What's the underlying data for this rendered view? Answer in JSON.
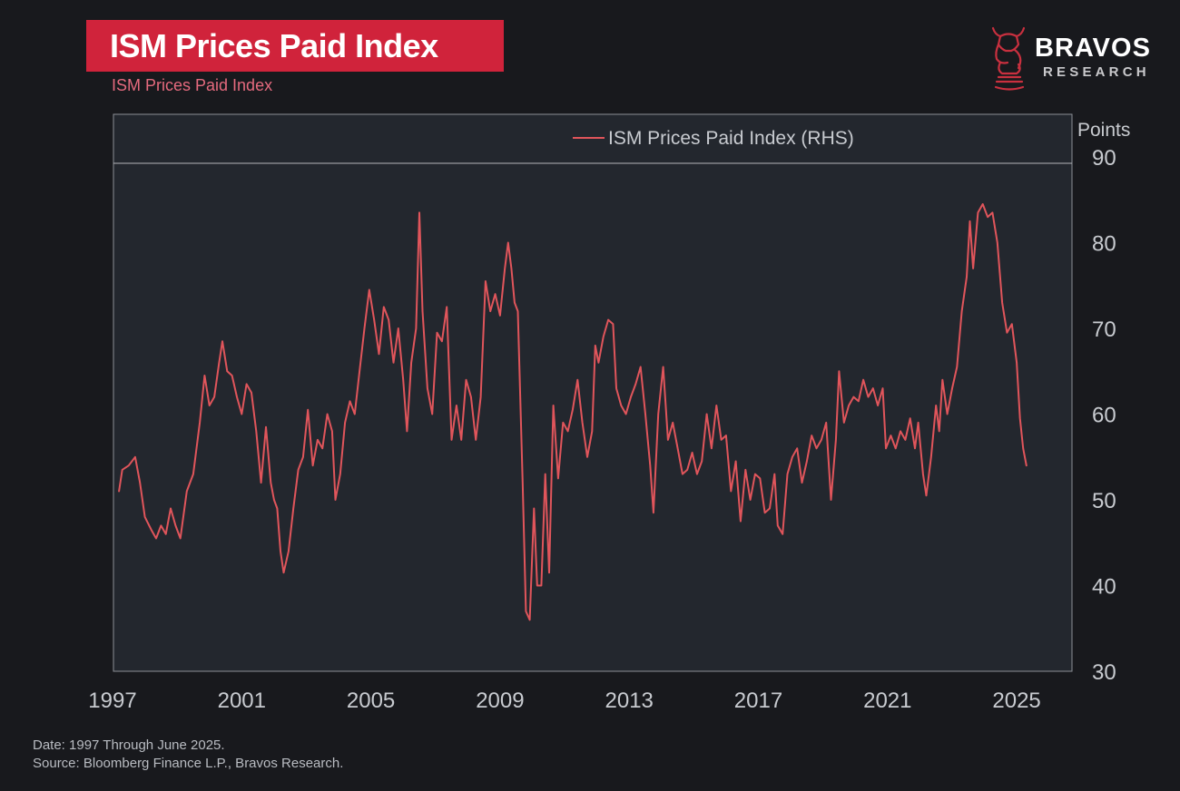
{
  "header": {
    "title": "ISM Prices Paid Index",
    "subtitle": "ISM Prices Paid Index"
  },
  "brand": {
    "name": "BRAVOS",
    "sub": "RESEARCH",
    "logo_icon": "bull-knight-icon"
  },
  "footer": {
    "date_note": "Date: 1997 Through June 2025.",
    "source_note": "Source: Bloomberg Finance L.P., Bravos Research."
  },
  "colors": {
    "background": "#18191d",
    "plot_background": "#23272e",
    "accent": "#d0233b",
    "series": "#e0555b",
    "axis_text": "#c8cbd0"
  },
  "chart_data": {
    "type": "line",
    "title": "ISM Prices Paid Index",
    "ylabel": "Points",
    "ylim": [
      30,
      90
    ],
    "xlim": [
      1997,
      2025.7
    ],
    "y_axis_side": "right",
    "grid": false,
    "legend_position": "top-center",
    "x_ticks": [
      "1997",
      "2001",
      "2005",
      "2009",
      "2013",
      "2017",
      "2021",
      "2025"
    ],
    "y_ticks": [
      "30",
      "40",
      "50",
      "60",
      "70",
      "80",
      "90"
    ],
    "series": [
      {
        "name": "ISM Prices Paid Index (RHS)",
        "color": "#e0555b",
        "points": [
          [
            1997.2,
            51
          ],
          [
            1997.3,
            53.5
          ],
          [
            1997.5,
            54
          ],
          [
            1997.7,
            55
          ],
          [
            1997.85,
            52
          ],
          [
            1998.0,
            48
          ],
          [
            1998.2,
            46.5
          ],
          [
            1998.35,
            45.5
          ],
          [
            1998.5,
            47
          ],
          [
            1998.65,
            46
          ],
          [
            1998.8,
            49
          ],
          [
            1998.95,
            47
          ],
          [
            1999.1,
            45.5
          ],
          [
            1999.3,
            51
          ],
          [
            1999.5,
            53
          ],
          [
            1999.7,
            59
          ],
          [
            1999.85,
            64.5
          ],
          [
            2000.0,
            61
          ],
          [
            2000.15,
            62
          ],
          [
            2000.3,
            66
          ],
          [
            2000.4,
            68.5
          ],
          [
            2000.55,
            65
          ],
          [
            2000.7,
            64.5
          ],
          [
            2000.85,
            62
          ],
          [
            2001.0,
            60
          ],
          [
            2001.15,
            63.5
          ],
          [
            2001.3,
            62.5
          ],
          [
            2001.45,
            58
          ],
          [
            2001.6,
            52
          ],
          [
            2001.75,
            58.5
          ],
          [
            2001.9,
            52
          ],
          [
            2002.0,
            50
          ],
          [
            2002.1,
            49
          ],
          [
            2002.2,
            44
          ],
          [
            2002.3,
            41.5
          ],
          [
            2002.45,
            44
          ],
          [
            2002.6,
            49
          ],
          [
            2002.75,
            53.5
          ],
          [
            2002.9,
            55
          ],
          [
            2003.05,
            60.5
          ],
          [
            2003.2,
            54
          ],
          [
            2003.35,
            57
          ],
          [
            2003.5,
            56
          ],
          [
            2003.65,
            60
          ],
          [
            2003.8,
            58
          ],
          [
            2003.9,
            50
          ],
          [
            2004.05,
            53
          ],
          [
            2004.2,
            59
          ],
          [
            2004.35,
            61.5
          ],
          [
            2004.5,
            60
          ],
          [
            2004.65,
            65
          ],
          [
            2004.8,
            70
          ],
          [
            2004.95,
            74.5
          ],
          [
            2005.1,
            71
          ],
          [
            2005.25,
            67
          ],
          [
            2005.4,
            72.5
          ],
          [
            2005.55,
            71
          ],
          [
            2005.7,
            66
          ],
          [
            2005.85,
            70
          ],
          [
            2006.0,
            64
          ],
          [
            2006.12,
            58
          ],
          [
            2006.25,
            66
          ],
          [
            2006.4,
            70
          ],
          [
            2006.5,
            83.5
          ],
          [
            2006.6,
            72
          ],
          [
            2006.75,
            63
          ],
          [
            2006.9,
            60
          ],
          [
            2007.05,
            69.5
          ],
          [
            2007.2,
            68.5
          ],
          [
            2007.35,
            72.5
          ],
          [
            2007.5,
            57
          ],
          [
            2007.65,
            61
          ],
          [
            2007.8,
            57
          ],
          [
            2007.95,
            64
          ],
          [
            2008.1,
            62
          ],
          [
            2008.25,
            57
          ],
          [
            2008.4,
            62
          ],
          [
            2008.55,
            75.5
          ],
          [
            2008.7,
            72
          ],
          [
            2008.85,
            74
          ],
          [
            2009.0,
            71.5
          ],
          [
            2009.15,
            77
          ],
          [
            2009.25,
            80
          ],
          [
            2009.35,
            77
          ],
          [
            2009.45,
            73
          ],
          [
            2009.55,
            72
          ],
          [
            2009.7,
            52
          ],
          [
            2009.8,
            37
          ],
          [
            2009.92,
            36
          ],
          [
            2010.05,
            49
          ],
          [
            2010.15,
            40
          ],
          [
            2010.28,
            40
          ],
          [
            2010.4,
            53
          ],
          [
            2010.52,
            41.5
          ],
          [
            2010.65,
            61
          ],
          [
            2010.8,
            52.5
          ],
          [
            2010.95,
            59
          ],
          [
            2011.1,
            58
          ],
          [
            2011.25,
            60.5
          ],
          [
            2011.4,
            64
          ],
          [
            2011.55,
            59
          ],
          [
            2011.7,
            55
          ],
          [
            2011.85,
            58
          ],
          [
            2011.95,
            68
          ],
          [
            2012.05,
            66
          ],
          [
            2012.2,
            69
          ],
          [
            2012.35,
            71
          ],
          [
            2012.5,
            70.5
          ],
          [
            2012.6,
            63
          ],
          [
            2012.75,
            61
          ],
          [
            2012.9,
            60
          ],
          [
            2013.05,
            62
          ],
          [
            2013.2,
            63.5
          ],
          [
            2013.35,
            65.5
          ],
          [
            2013.5,
            60
          ],
          [
            2013.65,
            54
          ],
          [
            2013.75,
            48.5
          ],
          [
            2013.9,
            60
          ],
          [
            2014.05,
            65.5
          ],
          [
            2014.2,
            57
          ],
          [
            2014.35,
            59
          ],
          [
            2014.5,
            56
          ],
          [
            2014.65,
            53
          ],
          [
            2014.8,
            53.5
          ],
          [
            2014.95,
            55.5
          ],
          [
            2015.1,
            53
          ],
          [
            2015.25,
            54.5
          ],
          [
            2015.4,
            60
          ],
          [
            2015.55,
            56
          ],
          [
            2015.7,
            61
          ],
          [
            2015.85,
            57
          ],
          [
            2016.0,
            57.5
          ],
          [
            2016.15,
            51
          ],
          [
            2016.3,
            54.5
          ],
          [
            2016.45,
            47.5
          ],
          [
            2016.6,
            53.5
          ],
          [
            2016.75,
            50
          ],
          [
            2016.9,
            53
          ],
          [
            2017.05,
            52.5
          ],
          [
            2017.2,
            48.5
          ],
          [
            2017.35,
            49
          ],
          [
            2017.5,
            53
          ],
          [
            2017.6,
            47
          ],
          [
            2017.75,
            46
          ],
          [
            2017.9,
            53
          ],
          [
            2018.05,
            55
          ],
          [
            2018.2,
            56
          ],
          [
            2018.35,
            52
          ],
          [
            2018.5,
            54.5
          ],
          [
            2018.65,
            57.5
          ],
          [
            2018.8,
            56
          ],
          [
            2018.95,
            57
          ],
          [
            2019.1,
            59
          ],
          [
            2019.25,
            50
          ],
          [
            2019.4,
            57
          ],
          [
            2019.5,
            65
          ],
          [
            2019.65,
            59
          ],
          [
            2019.8,
            61
          ],
          [
            2019.95,
            62
          ],
          [
            2020.1,
            61.5
          ],
          [
            2020.25,
            64
          ],
          [
            2020.4,
            62
          ],
          [
            2020.55,
            63
          ],
          [
            2020.7,
            61
          ],
          [
            2020.85,
            63
          ],
          [
            2020.95,
            56
          ],
          [
            2021.1,
            57.5
          ],
          [
            2021.25,
            56
          ],
          [
            2021.4,
            58
          ],
          [
            2021.55,
            57
          ],
          [
            2021.7,
            59.5
          ],
          [
            2021.85,
            56
          ],
          [
            2021.95,
            59
          ],
          [
            2022.1,
            53
          ],
          [
            2022.2,
            50.5
          ],
          [
            2022.35,
            55
          ],
          [
            2022.5,
            61
          ],
          [
            2022.6,
            58
          ],
          [
            2022.7,
            64
          ],
          [
            2022.85,
            60
          ],
          [
            2023.0,
            63
          ],
          [
            2023.15,
            65.5
          ],
          [
            2023.3,
            72
          ],
          [
            2023.45,
            76
          ],
          [
            2023.55,
            82.5
          ],
          [
            2023.65,
            77
          ],
          [
            2023.8,
            83.5
          ],
          [
            2023.95,
            84.5
          ],
          [
            2024.1,
            83
          ],
          [
            2024.25,
            83.5
          ],
          [
            2024.4,
            80
          ],
          [
            2024.55,
            73
          ],
          [
            2024.7,
            69.5
          ],
          [
            2024.85,
            70.5
          ],
          [
            2025.0,
            66
          ],
          [
            2025.1,
            59.5
          ],
          [
            2025.2,
            56
          ],
          [
            2025.3,
            54
          ]
        ]
      }
    ]
  }
}
